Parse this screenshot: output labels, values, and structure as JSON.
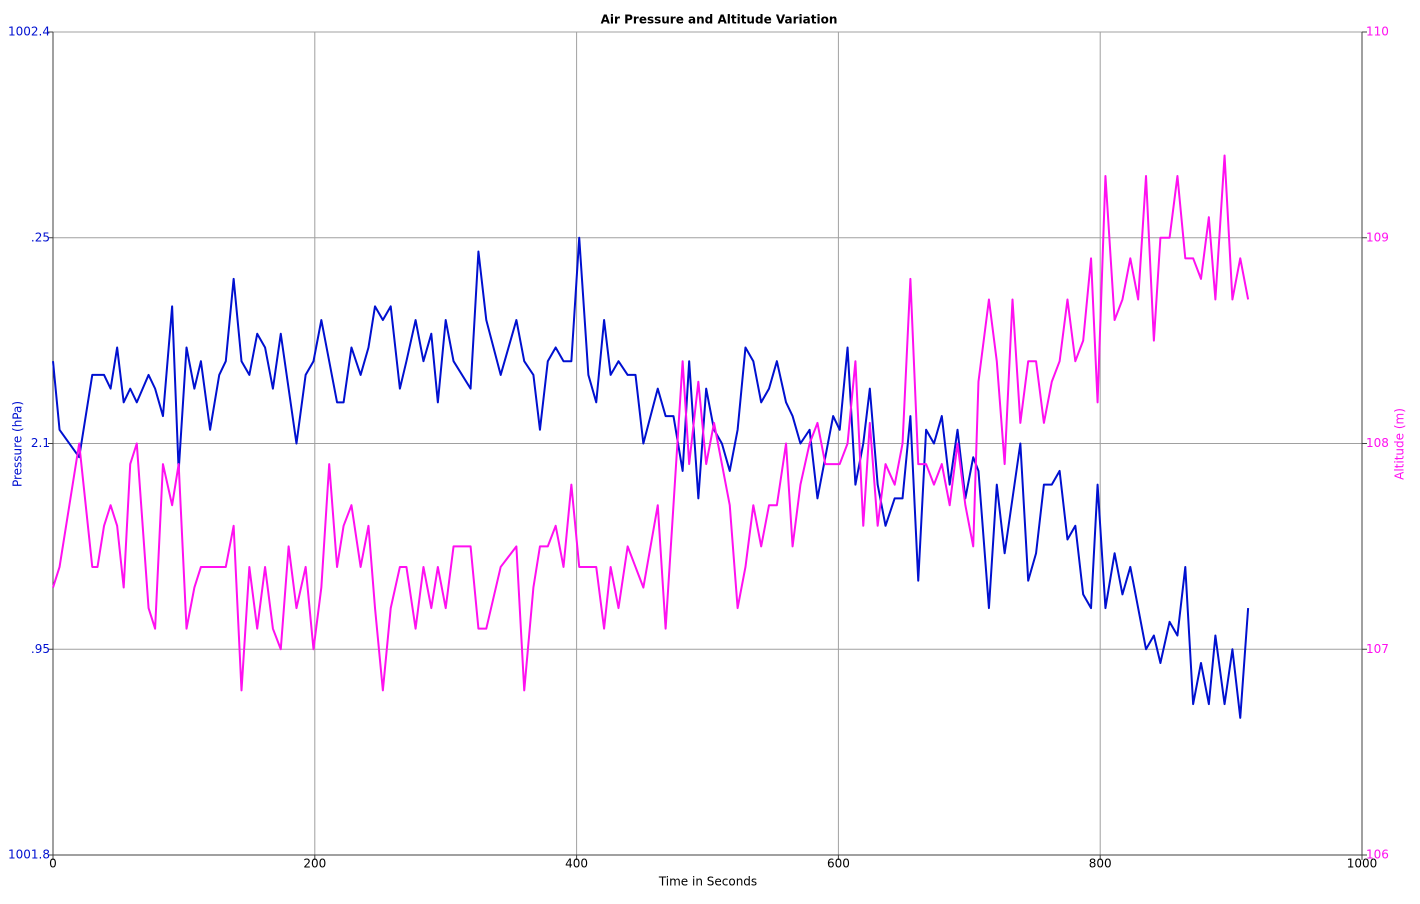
{
  "chart_data": {
    "type": "line",
    "title": "Air Pressure and Altitude Variation",
    "xlabel": "Time in Seconds",
    "ylabel": "Pressure (hPa)",
    "y2label": "Altitude (m)",
    "xlim": [
      0,
      1000
    ],
    "xticks": [
      0,
      200,
      400,
      600,
      800,
      1000
    ],
    "ylim": [
      1001.8,
      1002.4
    ],
    "yticks": [
      1001.8,
      {
        "value": 1001.95,
        "label": ".95"
      },
      {
        "value": 1002.1,
        "label": "2.1"
      },
      {
        "value": 1002.25,
        "label": ".25"
      },
      1002.4
    ],
    "y2lim": [
      106,
      110
    ],
    "y2ticks": [
      106,
      107,
      108,
      109,
      110
    ],
    "grid": true,
    "x": [
      0,
      5,
      20,
      30,
      34,
      39,
      44,
      49,
      54,
      59,
      64,
      73,
      78,
      84,
      91,
      96,
      102,
      108,
      113,
      120,
      127,
      132,
      138,
      144,
      150,
      156,
      162,
      168,
      174,
      180,
      186,
      193,
      199,
      205,
      211,
      217,
      222,
      228,
      235,
      241,
      246,
      252,
      258,
      265,
      270,
      277,
      283,
      289,
      294,
      300,
      306,
      319,
      325,
      331,
      342,
      354,
      360,
      367,
      372,
      378,
      384,
      390,
      396,
      402,
      409,
      415,
      421,
      426,
      432,
      439,
      445,
      451,
      462,
      468,
      474,
      481,
      486,
      493,
      499,
      505,
      511,
      517,
      523,
      529,
      535,
      541,
      547,
      553,
      560,
      565,
      571,
      578,
      584,
      590,
      596,
      601,
      607,
      613,
      619,
      624,
      630,
      636,
      643,
      649,
      655,
      661,
      667,
      673,
      679,
      685,
      691,
      697,
      703,
      707,
      715,
      721,
      727,
      733,
      739,
      745,
      751,
      757,
      763,
      769,
      775,
      781,
      787,
      793,
      798,
      804,
      811,
      817,
      823,
      829,
      835,
      841,
      846,
      853,
      859,
      865,
      871,
      877,
      883,
      888,
      895,
      901,
      907,
      913
    ],
    "series": [
      {
        "name": "Pressure (hPa)",
        "color": "#0010d0",
        "axis": "y",
        "values": [
          1002.16,
          1002.11,
          1002.09,
          1002.15,
          1002.15,
          1002.15,
          1002.14,
          1002.17,
          1002.13,
          1002.14,
          1002.13,
          1002.15,
          1002.14,
          1002.12,
          1002.2,
          1002.08,
          1002.17,
          1002.14,
          1002.16,
          1002.11,
          1002.15,
          1002.16,
          1002.22,
          1002.16,
          1002.15,
          1002.18,
          1002.17,
          1002.14,
          1002.18,
          1002.14,
          1002.1,
          1002.15,
          1002.16,
          1002.19,
          1002.16,
          1002.13,
          1002.13,
          1002.17,
          1002.15,
          1002.17,
          1002.2,
          1002.19,
          1002.2,
          1002.14,
          1002.16,
          1002.19,
          1002.16,
          1002.18,
          1002.13,
          1002.19,
          1002.16,
          1002.14,
          1002.24,
          1002.19,
          1002.15,
          1002.19,
          1002.16,
          1002.15,
          1002.11,
          1002.16,
          1002.17,
          1002.16,
          1002.16,
          1002.25,
          1002.15,
          1002.13,
          1002.19,
          1002.15,
          1002.16,
          1002.15,
          1002.15,
          1002.1,
          1002.14,
          1002.12,
          1002.12,
          1002.08,
          1002.16,
          1002.06,
          1002.14,
          1002.11,
          1002.1,
          1002.08,
          1002.11,
          1002.17,
          1002.16,
          1002.13,
          1002.14,
          1002.16,
          1002.13,
          1002.12,
          1002.1,
          1002.11,
          1002.06,
          1002.09,
          1002.12,
          1002.11,
          1002.17,
          1002.07,
          1002.1,
          1002.14,
          1002.07,
          1002.04,
          1002.06,
          1002.06,
          1002.12,
          1002.0,
          1002.11,
          1002.1,
          1002.12,
          1002.07,
          1002.11,
          1002.06,
          1002.09,
          1002.08,
          1001.98,
          1002.07,
          1002.02,
          1002.06,
          1002.1,
          1002.0,
          1002.02,
          1002.07,
          1002.07,
          1002.08,
          1002.03,
          1002.04,
          1001.99,
          1001.98,
          1002.07,
          1001.98,
          1002.02,
          1001.99,
          1002.01,
          1001.98,
          1001.95,
          1001.96,
          1001.94,
          1001.97,
          1001.96,
          1002.01,
          1001.91,
          1001.94,
          1001.91,
          1001.96,
          1001.91,
          1001.95,
          1001.9,
          1001.98
        ]
      },
      {
        "name": "Altitude (m)",
        "color": "#ff10f0",
        "axis": "y2",
        "values": [
          107.3,
          107.4,
          108,
          107.4,
          107.4,
          107.6,
          107.7,
          107.6,
          107.3,
          107.9,
          108,
          107.2,
          107.1,
          107.9,
          107.7,
          107.9,
          107.1,
          107.3,
          107.4,
          107.4,
          107.4,
          107.4,
          107.6,
          106.8,
          107.4,
          107.1,
          107.4,
          107.1,
          107,
          107.5,
          107.2,
          107.4,
          107,
          107.3,
          107.9,
          107.4,
          107.6,
          107.7,
          107.4,
          107.6,
          107.2,
          106.8,
          107.2,
          107.4,
          107.4,
          107.1,
          107.4,
          107.2,
          107.4,
          107.2,
          107.5,
          107.5,
          107.1,
          107.1,
          107.4,
          107.5,
          106.8,
          107.3,
          107.5,
          107.5,
          107.6,
          107.4,
          107.8,
          107.4,
          107.4,
          107.4,
          107.1,
          107.4,
          107.2,
          107.5,
          107.4,
          107.3,
          107.7,
          107.1,
          107.7,
          108.4,
          107.9,
          108.3,
          107.9,
          108.1,
          107.9,
          107.7,
          107.2,
          107.4,
          107.7,
          107.5,
          107.7,
          107.7,
          108,
          107.5,
          107.8,
          108,
          108.1,
          107.9,
          107.9,
          107.9,
          108,
          108.4,
          107.6,
          108.1,
          107.6,
          107.9,
          107.8,
          108,
          108.8,
          107.9,
          107.9,
          107.8,
          107.9,
          107.7,
          108,
          107.7,
          107.5,
          108.3,
          108.7,
          108.4,
          107.9,
          108.7,
          108.1,
          108.4,
          108.4,
          108.1,
          108.3,
          108.4,
          108.7,
          108.4,
          108.5,
          108.9,
          108.2,
          109.3,
          108.6,
          108.7,
          108.9,
          108.7,
          109.3,
          108.5,
          109,
          109,
          109.3,
          108.9,
          108.9,
          108.8,
          109.1,
          108.7,
          109.4,
          108.7,
          108.9,
          108.7
        ]
      }
    ]
  }
}
